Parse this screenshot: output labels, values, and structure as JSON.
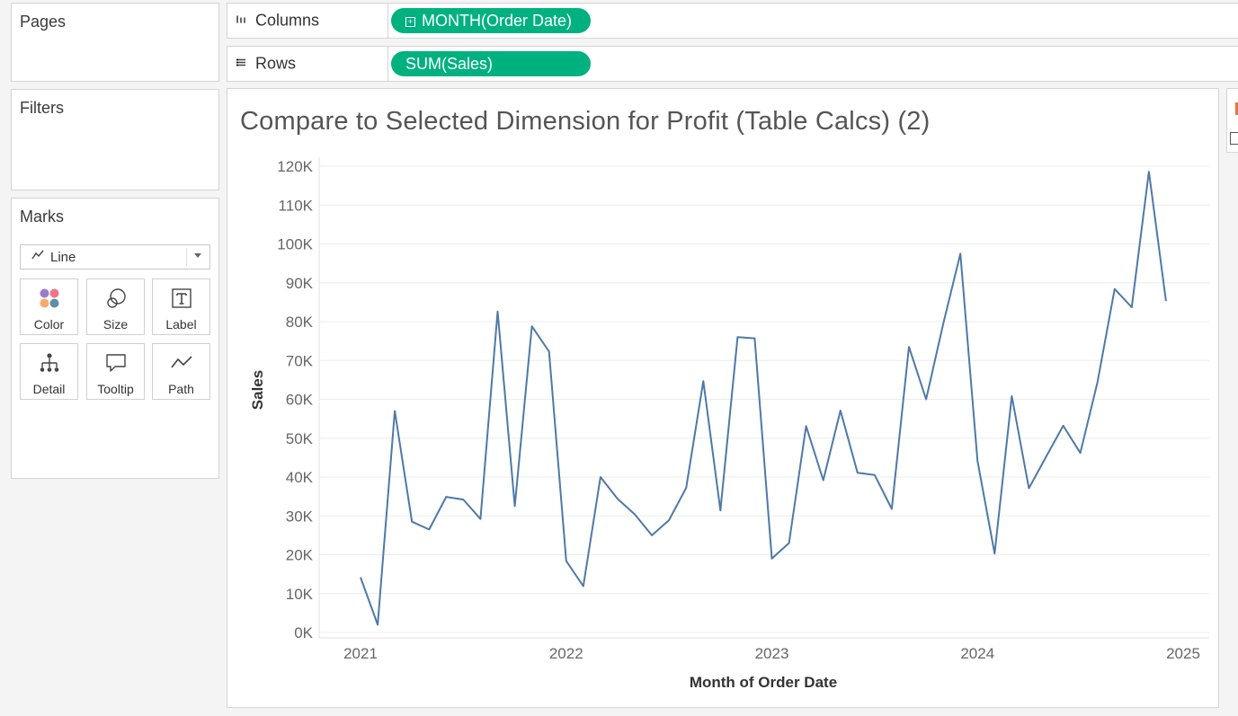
{
  "cards": {
    "pages_title": "Pages",
    "filters_title": "Filters",
    "marks_title": "Marks"
  },
  "shelves": {
    "columns": {
      "label": "Columns",
      "icon": "columns-icon",
      "pill": "MONTH(Order Date)"
    },
    "rows": {
      "label": "Rows",
      "icon": "rows-icon",
      "pill": "SUM(Sales)"
    }
  },
  "marks": {
    "type": "Line",
    "buttons": {
      "color": "Color",
      "size": "Size",
      "label": "Label",
      "detail": "Detail",
      "tooltip": "Tooltip",
      "path": "Path"
    }
  },
  "colors": {
    "pill_green": "#00b180",
    "line_blue": "#4e79a7"
  },
  "view": {
    "title": "Compare to Selected Dimension for Profit (Table Calcs) (2)"
  },
  "chart_data": {
    "type": "line",
    "title": "Compare to Selected Dimension for Profit (Table Calcs) (2)",
    "xlabel": "Month of Order Date",
    "ylabel": "Sales",
    "x_tick_labels": [
      "2021",
      "2022",
      "2023",
      "2024",
      "2025"
    ],
    "y_tick_labels": [
      "0K",
      "10K",
      "20K",
      "30K",
      "40K",
      "50K",
      "60K",
      "70K",
      "80K",
      "90K",
      "100K",
      "110K",
      "120K"
    ],
    "ylim": [
      0,
      120000
    ],
    "grid": true,
    "series": [
      {
        "values": [
          14200,
          2000,
          57000,
          28500,
          26500,
          34900,
          34200,
          29200,
          82600,
          32500,
          78800,
          72300,
          18400,
          11900,
          40000,
          34400,
          30400,
          25000,
          28900,
          37200,
          64700,
          31400,
          76000,
          75700,
          19000,
          23000,
          53100,
          39200,
          57100,
          41100,
          40500,
          31800,
          73500,
          60000,
          79400,
          97500,
          44100,
          20300,
          60800,
          37100,
          45200,
          53200,
          46200,
          64400,
          88400,
          83700,
          118600,
          85300
        ]
      }
    ]
  }
}
